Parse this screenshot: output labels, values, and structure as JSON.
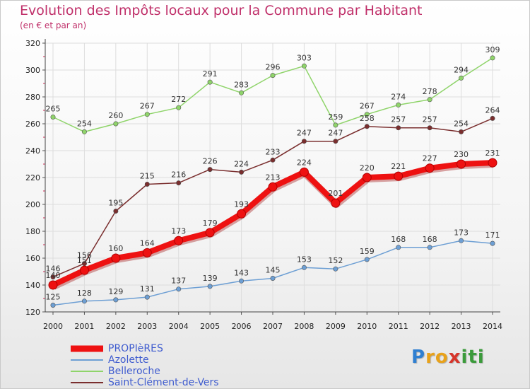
{
  "title": "Evolution des Impôts locaux pour la Commune par Habitant",
  "subtitle": "(en € et par an)",
  "logo": {
    "letters": [
      "P",
      "r",
      "o",
      "x",
      "i",
      "t",
      "i"
    ],
    "colors": [
      "#2f7fd1",
      "#e8a21b",
      "#e8a21b",
      "#d6352b",
      "#3b9b3b",
      "#3b9b3b",
      "#3b9b3b"
    ]
  },
  "chart_data": {
    "type": "line",
    "title": "Evolution des Impôts locaux pour la Commune par Habitant",
    "subtitle": "(en € et par an)",
    "x": [
      2000,
      2001,
      2002,
      2003,
      2004,
      2005,
      2006,
      2007,
      2008,
      2009,
      2010,
      2011,
      2012,
      2013,
      2014
    ],
    "ylim": [
      120,
      320
    ],
    "yticks": [
      120,
      140,
      160,
      180,
      200,
      220,
      240,
      260,
      280,
      300,
      320
    ],
    "grid": true,
    "legend_position": "bottom-left",
    "series": [
      {
        "name": "Belleroche",
        "color": "#8fd46a",
        "values": [
          265,
          254,
          260,
          267,
          272,
          291,
          283,
          296,
          303,
          259,
          267,
          274,
          278,
          294,
          309
        ],
        "labels": [
          "265",
          "254",
          "260",
          "267",
          "272",
          "291",
          "283",
          "296",
          "303",
          "259",
          "267",
          "274",
          "278",
          "294",
          "309"
        ]
      },
      {
        "name": "Saint-Clément-de-Vers",
        "color": "#7a2e2e",
        "values": [
          146,
          156,
          195,
          215,
          216,
          226,
          224,
          233,
          247,
          247,
          258,
          257,
          257,
          254,
          264
        ],
        "labels": [
          "146",
          "156",
          "195",
          "215",
          "216",
          "226",
          "224",
          "233",
          "247",
          "247",
          "258",
          "257",
          "257",
          "254",
          "264"
        ]
      },
      {
        "name": "Azolette",
        "color": "#6d9fd4",
        "values": [
          125,
          128,
          129,
          131,
          137,
          139,
          143,
          145,
          153,
          152,
          159,
          168,
          168,
          173,
          171
        ],
        "labels": [
          "125",
          "128",
          "129",
          "131",
          "137",
          "139",
          "143",
          "145",
          "153",
          "152",
          "159",
          "168",
          "168",
          "173",
          "171"
        ]
      },
      {
        "name": "PROPIèRES",
        "color": "#ee1111",
        "values": [
          140,
          151,
          160,
          164,
          173,
          179,
          193,
          213,
          224,
          201,
          220,
          221,
          227,
          230,
          231
        ],
        "labels": [
          "140",
          "151",
          "160",
          "164",
          "173",
          "179",
          "193",
          "213",
          "224",
          "201",
          "220",
          "221",
          "227",
          "230",
          "231"
        ]
      }
    ],
    "legend": [
      "PROPIèRES",
      "Azolette",
      "Belleroche",
      "Saint-Clément-de-Vers"
    ]
  }
}
